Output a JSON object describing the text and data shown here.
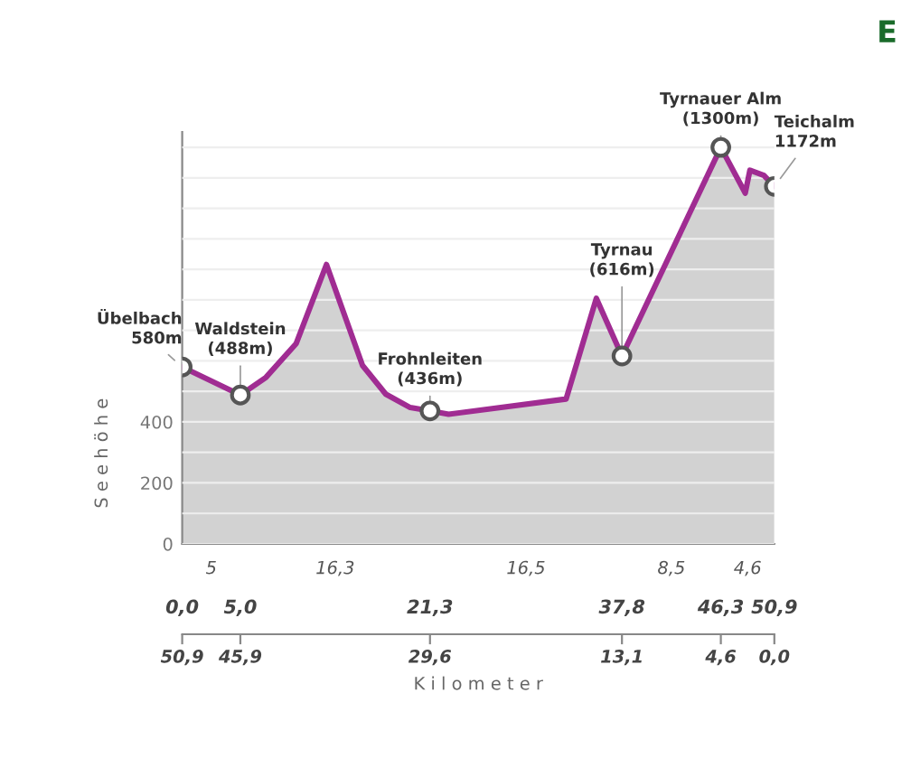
{
  "chart_data": {
    "type": "area",
    "ylabel": "S e e h ö h e",
    "x2label": "K i l o m e t e r",
    "x": [
      0,
      5.0,
      7.2,
      9.8,
      12.4,
      15.5,
      17.5,
      19.6,
      21.3,
      22.9,
      33.0,
      35.6,
      37.8,
      46.3,
      48.4,
      48.8,
      50.0,
      50.9
    ],
    "series": [
      {
        "color": "#a02c92",
        "values": [
          580,
          488,
          546,
          657,
          916,
          585,
          491,
          447,
          436,
          425,
          475,
          805,
          616,
          1300,
          1150,
          1225,
          1208,
          1172
        ]
      },
      {
        "type": "scatter",
        "marker": "circle",
        "color": "#ffffff",
        "x": [
          0,
          5.0,
          21.3,
          37.8,
          46.3,
          50.9
        ],
        "values": [
          580,
          488,
          436,
          616,
          1300,
          1172
        ]
      }
    ],
    "xlim": [
      0,
      50.9
    ],
    "ylim": [
      0,
      1350
    ],
    "xticks": [
      {
        "value": 0,
        "label": "0,0"
      },
      {
        "value": 5.0,
        "label": "5,0"
      },
      {
        "value": 21.3,
        "label": "21,3"
      },
      {
        "value": 37.8,
        "label": "37,8"
      },
      {
        "value": 46.3,
        "label": "46,3"
      },
      {
        "value": 50.9,
        "label": "50,9"
      }
    ],
    "x2lim": [
      50.9,
      0
    ],
    "x2ticks": [
      {
        "value": 50.9,
        "label": "50,9"
      },
      {
        "value": 45.9,
        "label": "45,9"
      },
      {
        "value": 29.6,
        "label": "29,6"
      },
      {
        "value": 13.1,
        "label": "13,1"
      },
      {
        "value": 4.6,
        "label": "4,6"
      },
      {
        "value": 0,
        "label": "0,0"
      }
    ],
    "yticks": [
      0,
      {
        "value": 100,
        "label": null
      },
      200,
      {
        "value": 300,
        "label": null
      },
      400,
      {
        "value": 500,
        "label": null
      },
      {
        "value": 600,
        "label": null
      },
      {
        "value": 700,
        "label": null
      },
      {
        "value": 800,
        "label": null
      },
      {
        "value": 900,
        "label": null
      },
      {
        "value": 1000,
        "label": null
      },
      {
        "value": 1100,
        "label": null
      },
      {
        "value": 1200,
        "label": null
      },
      {
        "value": 1300,
        "label": null
      }
    ],
    "grid": "y",
    "annotations": [
      {
        "text": "Übelbach\n580m",
        "x": 0,
        "y": 580
      },
      {
        "text": "Waldstein\n(488m)",
        "x": 5.0,
        "y": 488
      },
      {
        "text": "Frohnleiten\n(436m)",
        "x": 21.3,
        "y": 436
      },
      {
        "text": "Tyrnau\n(616m)",
        "x": 37.8,
        "y": 616
      },
      {
        "text": "Tyrnauer Alm\n(1300m)",
        "x": 46.3,
        "y": 1300
      },
      {
        "text": "Teichalm\n1172m",
        "x": 50.9,
        "y": 1172
      },
      "5",
      "16,3",
      "16,5",
      "8,5",
      "4,6",
      "E"
    ]
  }
}
